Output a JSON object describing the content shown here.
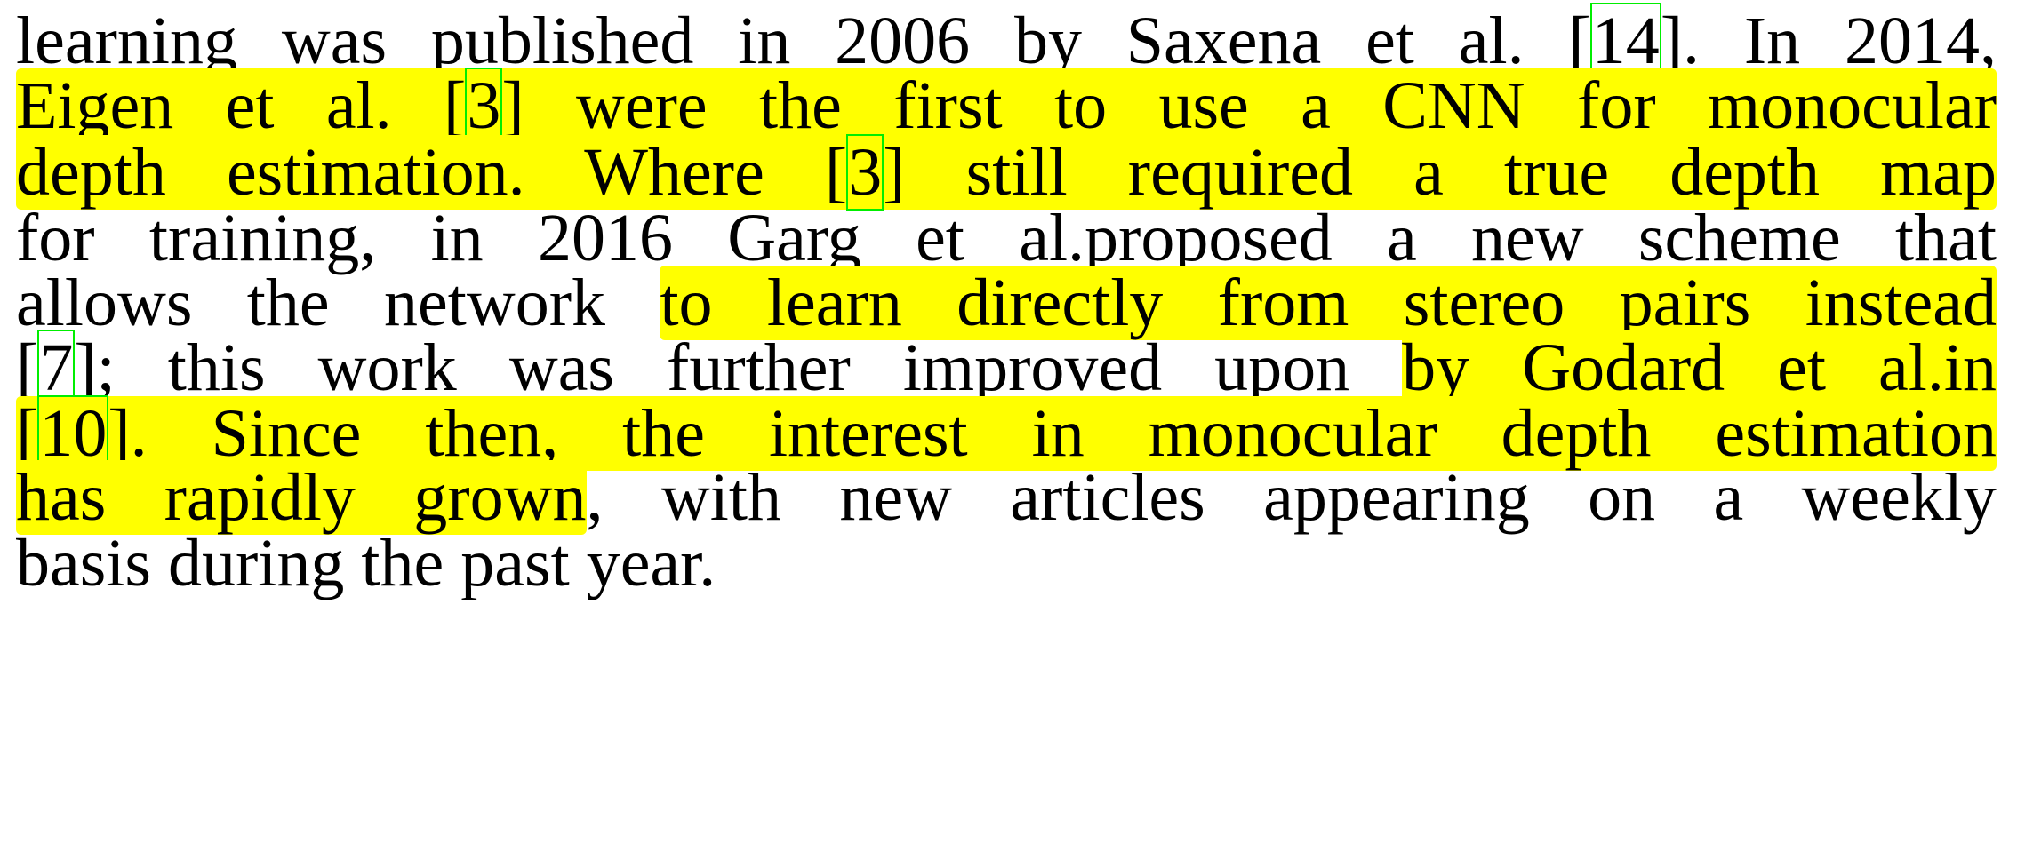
{
  "paragraph": {
    "lines": [
      {
        "t1": "learning was published in 2006 by Saxena et al. [",
        "r1": "14",
        "t2": "]. In 2014,"
      },
      {
        "t1": "Eigen et al. [",
        "r1": "3",
        "t2": "] were the first to use a CNN for monocular"
      },
      {
        "t1": "depth estimation. Where [",
        "r1": "3",
        "t2": "] still required a true depth map"
      },
      {
        "t1": "for training, in 2016 Garg et al.proposed a new scheme that"
      },
      {
        "t1": "allows the network ",
        "h1": "to learn directly from stereo pairs instead"
      },
      {
        "t1": "[",
        "r1": "7",
        "t2": "]; this work was further improved upon ",
        "h1": "by Godard et al.in"
      },
      {
        "t1": "[",
        "r1": "10",
        "t2": "]. Since then, the interest in monocular depth estimation"
      },
      {
        "h1": "has rapidly grown",
        "t2": ", with new articles appearing on a weekly"
      },
      {
        "t1": "basis during the past year."
      }
    ]
  },
  "colors": {
    "highlight": "#ffff00",
    "citation_box": "#00ee00",
    "text": "#000000"
  }
}
